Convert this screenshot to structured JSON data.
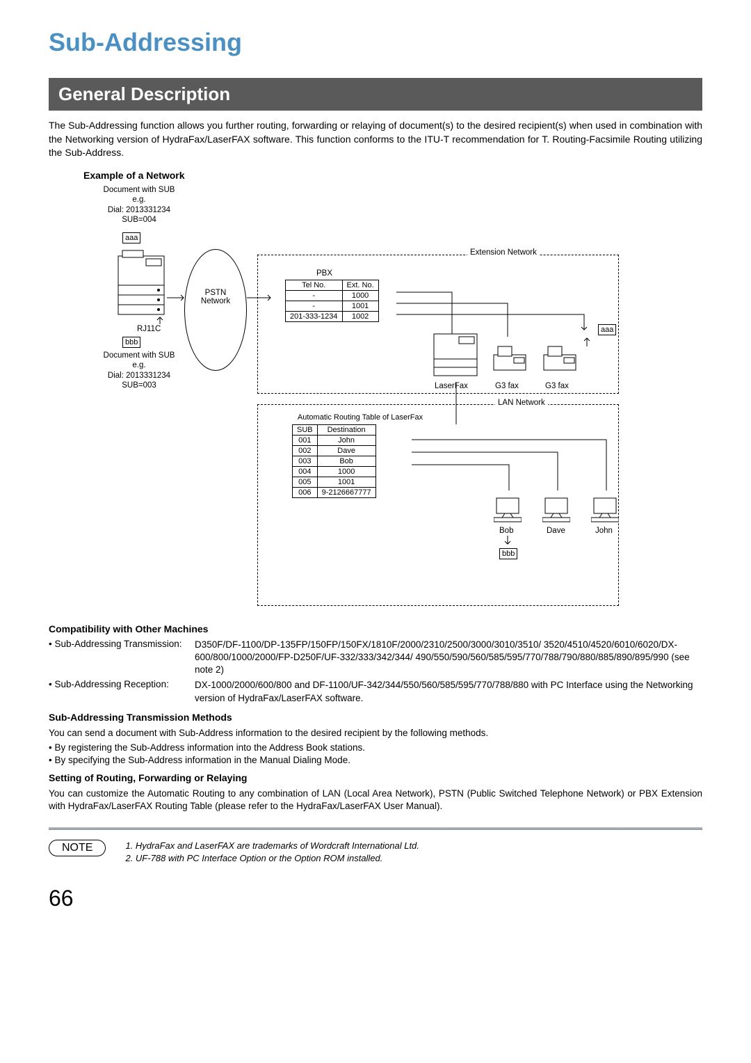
{
  "chapter_title": "Sub-Addressing",
  "section_title": "General Description",
  "intro_paragraph": "The Sub-Addressing function allows you further routing, forwarding or relaying of document(s) to the desired recipient(s) when used in combination with the Networking version of HydraFax/LaserFAX software. This function conforms to the ITU-T recommendation for T. Routing-Facsimile Routing utilizing the Sub-Address.",
  "diagram": {
    "heading": "Example of a Network",
    "doc_sub_1": "Document with SUB\ne.g.\nDial: 2013331234\nSUB=004",
    "doc_sub_2": "Document with SUB\ne.g.\nDial: 2013331234\nSUB=003",
    "aaa": "aaa",
    "bbb": "bbb",
    "rj11c": "RJ11C",
    "pstn": "PSTN\nNetwork",
    "ext_network": "Extension Network",
    "lan_network": "LAN Network",
    "pbx_label": "PBX",
    "pbx_headers": [
      "Tel No.",
      "Ext. No."
    ],
    "pbx_rows": [
      [
        "-",
        "1000"
      ],
      [
        "-",
        "1001"
      ],
      [
        "201-333-1234",
        "1002"
      ]
    ],
    "laserfax": "LaserFax",
    "g3fax": "G3 fax",
    "routing_title": "Automatic Routing Table of LaserFax",
    "routing_headers": [
      "SUB",
      "Destination"
    ],
    "routing_rows": [
      [
        "001",
        "John"
      ],
      [
        "002",
        "Dave"
      ],
      [
        "003",
        "Bob"
      ],
      [
        "004",
        "1000"
      ],
      [
        "005",
        "1001"
      ],
      [
        "006",
        "9-2126667777"
      ]
    ],
    "names": [
      "Bob",
      "Dave",
      "John"
    ]
  },
  "compat_heading": "Compatibility with Other Machines",
  "compat_items": [
    {
      "label": "• Sub-Addressing Transmission:",
      "text": "D350F/DF-1100/DP-135FP/150FP/150FX/1810F/2000/2310/2500/3000/3010/3510/ 3520/4510/4520/6010/6020/DX-600/800/1000/2000/FP-D250F/UF-332/333/342/344/ 490/550/590/560/585/595/770/788/790/880/885/890/895/990 (see note 2)"
    },
    {
      "label": "• Sub-Addressing Reception:",
      "text": "DX-1000/2000/600/800 and DF-1100/UF-342/344/550/560/585/595/770/788/880 with PC Interface using the Networking version of HydraFax/LaserFAX software."
    }
  ],
  "methods_heading": "Sub-Addressing Transmission Methods",
  "methods_intro": "You can send a document with Sub-Address information to the desired recipient by the following methods.",
  "methods_bullets": [
    "• By registering the Sub-Address information into the Address Book stations.",
    "• By specifying the Sub-Address information in the Manual Dialing Mode."
  ],
  "routing_heading": "Setting of Routing, Forwarding or Relaying",
  "routing_text": "You can customize the Automatic Routing to any combination of LAN (Local Area Network), PSTN (Public Switched Telephone Network) or PBX Extension with HydraFax/LaserFAX Routing Table (please refer to the HydraFax/LaserFAX User Manual).",
  "note_label": "NOTE",
  "notes": [
    "1. HydraFax and LaserFAX are trademarks of Wordcraft International Ltd.",
    "2. UF-788 with PC Interface Option or the Option ROM installed."
  ],
  "page_number": "66",
  "colors": {
    "title": "#4a90c2",
    "section_bg": "#5a5a5a",
    "section_fg": "#ffffff"
  }
}
